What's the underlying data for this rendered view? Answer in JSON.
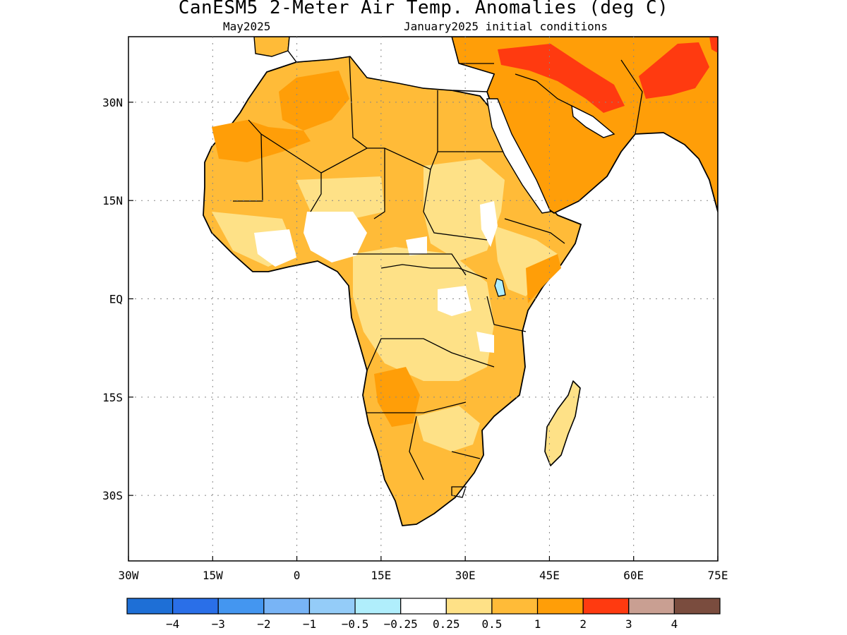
{
  "title": "CanESM5 2-Meter Air Temp. Anomalies (deg C)",
  "subtitle_left": "May2025",
  "subtitle_right": "January2025 initial conditions",
  "lat_labels": [
    "30N",
    "15N",
    "EQ",
    "15S",
    "30S"
  ],
  "lat_values": [
    30,
    15,
    0,
    -15,
    -30
  ],
  "lon_labels": [
    "30W",
    "15W",
    "0",
    "15E",
    "30E",
    "45E",
    "60E",
    "75E"
  ],
  "lon_values": [
    -30,
    -15,
    0,
    15,
    30,
    45,
    60,
    75
  ],
  "extent": {
    "lon": [
      -30,
      75
    ],
    "lat": [
      -40,
      40
    ]
  },
  "colorbar": {
    "labels": [
      "-4",
      "-3",
      "-2",
      "-1",
      "-0.5",
      "-0.25",
      "0.25",
      "0.5",
      "1",
      "2",
      "3",
      "4"
    ],
    "colors": [
      "#1e6fd6",
      "#2a6fe8",
      "#4496f0",
      "#78b4f6",
      "#94ccf8",
      "#b0eefc",
      "#ffffff",
      "#fee187",
      "#ffbb38",
      "#ff9e08",
      "#ff3a10",
      "#c99f92",
      "#7a4c3e"
    ]
  }
}
